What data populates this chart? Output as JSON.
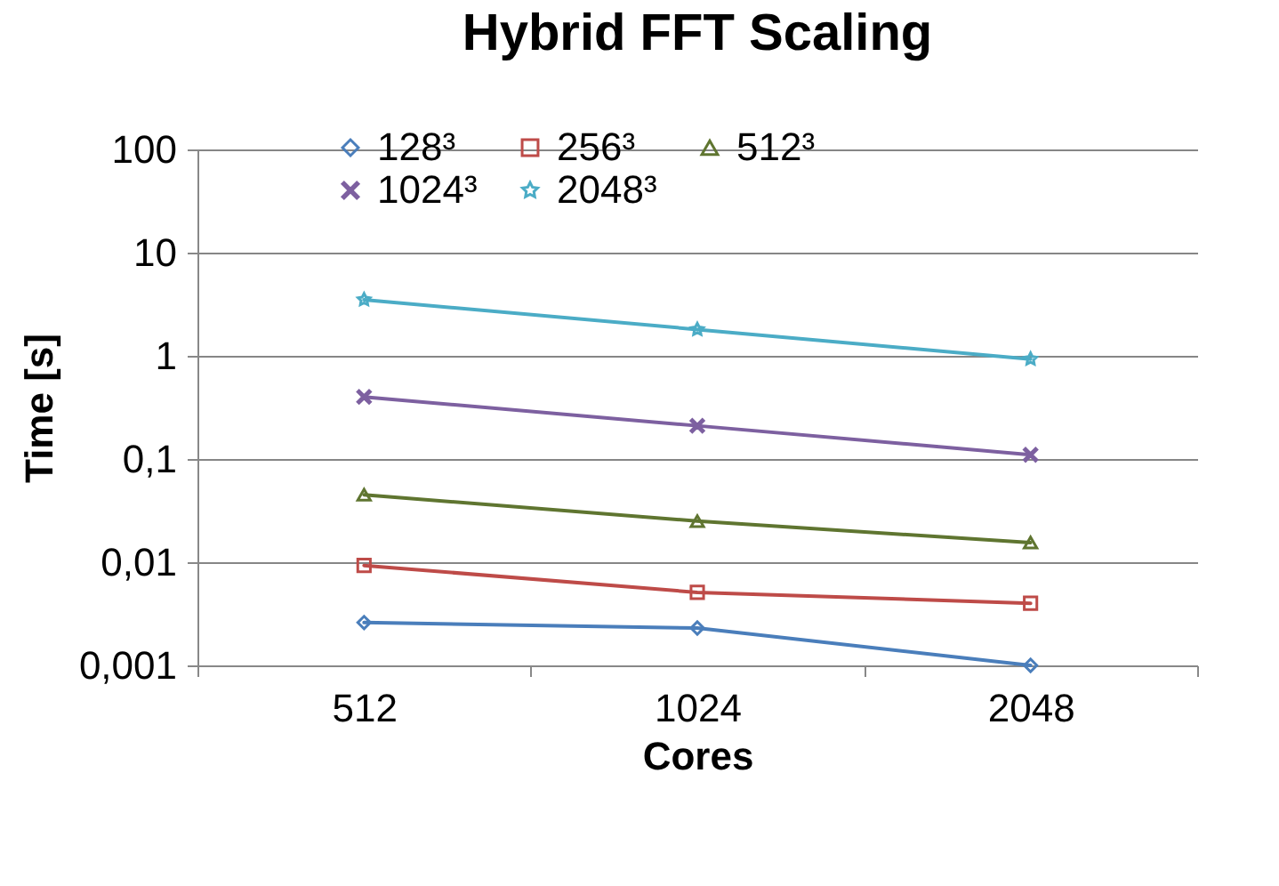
{
  "chart_data": {
    "type": "line",
    "title": "Hybrid FFT Scaling",
    "xlabel": "Cores",
    "ylabel": "Time [s]",
    "categories": [
      "512",
      "1024",
      "2048"
    ],
    "log": true,
    "ylim": [
      0.001,
      100
    ],
    "yticks": [
      {
        "value": 0.001,
        "label": "0,001"
      },
      {
        "value": 0.01,
        "label": "0,01"
      },
      {
        "value": 0.1,
        "label": "0,1"
      },
      1,
      10,
      100
    ],
    "grid": "y",
    "legend": "top",
    "series": [
      {
        "name": "128³",
        "color": "#4a7ebb",
        "marker": "diamond",
        "values": [
          0.0026,
          0.0023,
          0.001
        ]
      },
      {
        "name": "256³",
        "color": "#be4b48",
        "marker": "square",
        "values": [
          0.0093,
          0.0051,
          0.004
        ]
      },
      {
        "name": "512³",
        "color": "#5f7530",
        "marker": "triangle",
        "values": [
          0.045,
          0.025,
          0.0155
        ]
      },
      {
        "name": "1024³",
        "color": "#7d60a0",
        "marker": "cross",
        "values": [
          0.4,
          0.21,
          0.11
        ]
      },
      {
        "name": "2048³",
        "color": "#4bacc6",
        "marker": "star",
        "values": [
          3.5,
          1.8,
          0.93
        ]
      }
    ]
  }
}
